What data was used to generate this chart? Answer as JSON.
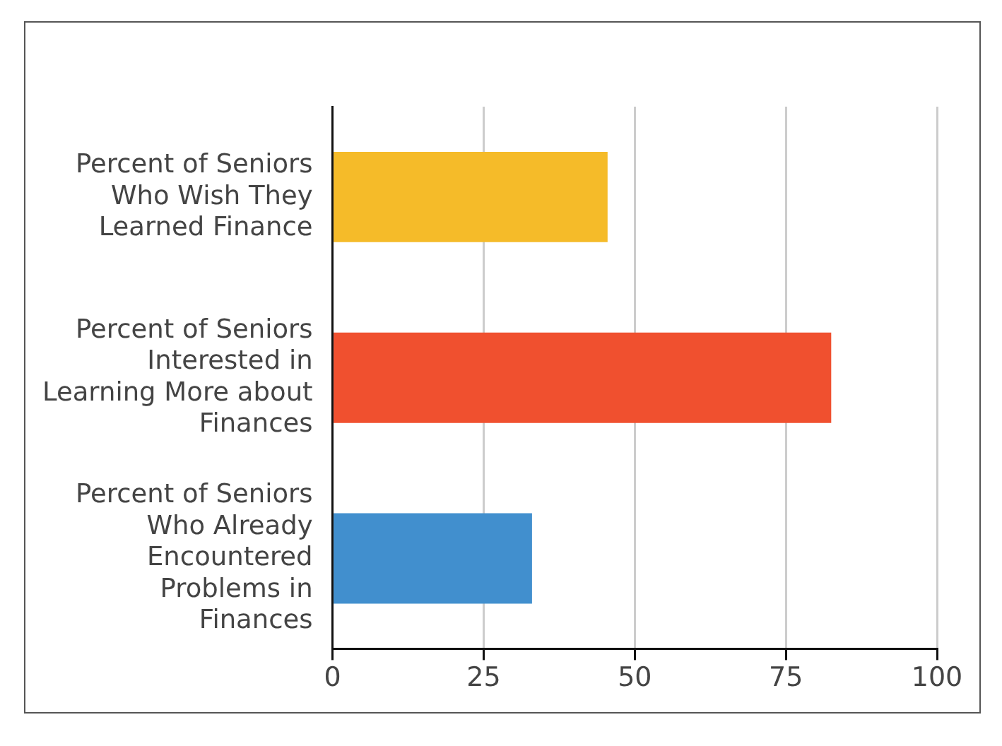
{
  "chart_data": {
    "type": "bar",
    "orientation": "horizontal",
    "categories": [
      "Percent of Seniors Who Wish They Learned Finance",
      "Percent of Seniors Interested in Learning More about Finances",
      "Percent of Seniors Who Already Encountered Problems in Finances"
    ],
    "values": [
      45.5,
      82.5,
      33
    ],
    "colors": [
      "#f5bb29",
      "#f0502f",
      "#418fce"
    ],
    "xlim": [
      0,
      100
    ],
    "xticks": [
      0,
      25,
      50,
      75,
      100
    ],
    "grid": "x",
    "legend": false
  }
}
